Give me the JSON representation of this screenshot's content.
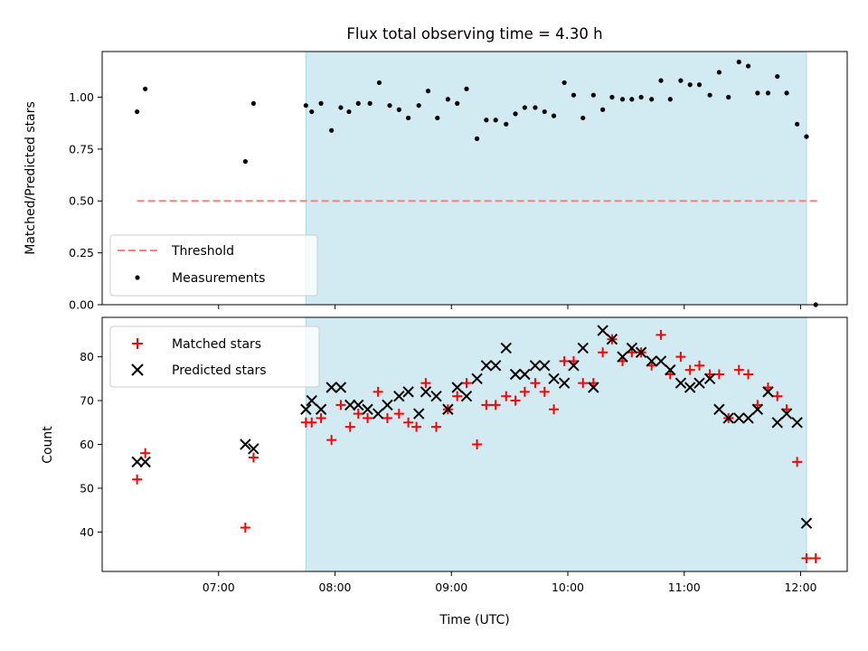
{
  "chart_data": [
    {
      "type": "scatter",
      "title": "Flux total observing time = 4.30 h",
      "xlabel": "",
      "ylabel": "Matched/Predicted stars",
      "x_unit": "hours UTC",
      "xlim": [
        6.0,
        12.4
      ],
      "ylim": [
        0.0,
        1.22
      ],
      "yticks": [
        0.0,
        0.25,
        0.5,
        0.75,
        1.0
      ],
      "ytick_labels": [
        "0.00",
        "0.25",
        "0.50",
        "0.75",
        "1.00"
      ],
      "highlight_span": {
        "x_start": 7.75,
        "x_end": 12.05,
        "color": "#add8e6"
      },
      "legend": {
        "position": "lower-left"
      },
      "series": [
        {
          "name": "Threshold",
          "kind": "dashed-line",
          "color": "#ff7f7f",
          "x": [
            6.3,
            12.15
          ],
          "y": [
            0.5,
            0.5
          ]
        },
        {
          "name": "Measurements",
          "kind": "dot",
          "color": "#000000",
          "x": [
            6.3,
            6.37,
            7.23,
            7.3,
            7.75,
            7.8,
            7.88,
            7.97,
            8.05,
            8.12,
            8.2,
            8.3,
            8.38,
            8.47,
            8.55,
            8.63,
            8.72,
            8.8,
            8.88,
            8.97,
            9.05,
            9.13,
            9.22,
            9.3,
            9.38,
            9.47,
            9.55,
            9.63,
            9.72,
            9.8,
            9.88,
            9.97,
            10.05,
            10.13,
            10.22,
            10.3,
            10.38,
            10.47,
            10.55,
            10.63,
            10.72,
            10.8,
            10.88,
            10.97,
            11.05,
            11.13,
            11.22,
            11.3,
            11.38,
            11.47,
            11.55,
            11.63,
            11.72,
            11.8,
            11.88,
            11.97,
            12.05,
            12.13
          ],
          "y": [
            0.93,
            1.04,
            0.69,
            0.97,
            0.96,
            0.93,
            0.97,
            0.84,
            0.95,
            0.93,
            0.97,
            0.97,
            1.07,
            0.96,
            0.94,
            0.9,
            0.96,
            1.03,
            0.9,
            0.99,
            0.97,
            1.04,
            0.8,
            0.89,
            0.89,
            0.87,
            0.92,
            0.95,
            0.95,
            0.93,
            0.91,
            1.07,
            1.01,
            0.9,
            1.01,
            0.94,
            1.0,
            0.99,
            0.99,
            1.0,
            0.99,
            1.08,
            0.99,
            1.08,
            1.06,
            1.06,
            1.01,
            1.12,
            1.0,
            1.17,
            1.15,
            1.02,
            1.02,
            1.1,
            1.02,
            0.87,
            0.81,
            0.0
          ]
        }
      ]
    },
    {
      "type": "scatter",
      "title": "",
      "xlabel": "Time (UTC)",
      "ylabel": "Count",
      "x_unit": "hours UTC",
      "xlim": [
        6.0,
        12.4
      ],
      "ylim": [
        31,
        89
      ],
      "xticks": [
        7,
        8,
        9,
        10,
        11,
        12
      ],
      "xtick_labels": [
        "07:00",
        "08:00",
        "09:00",
        "10:00",
        "11:00",
        "12:00"
      ],
      "yticks": [
        40,
        50,
        60,
        70,
        80
      ],
      "ytick_labels": [
        "40",
        "50",
        "60",
        "70",
        "80"
      ],
      "highlight_span": {
        "x_start": 7.75,
        "x_end": 12.05,
        "color": "#add8e6"
      },
      "legend": {
        "position": "upper-left"
      },
      "series": [
        {
          "name": "Matched stars",
          "kind": "plus",
          "color": "#ff0000",
          "x": [
            6.3,
            6.37,
            7.23,
            7.3,
            7.75,
            7.8,
            7.88,
            7.97,
            8.05,
            8.13,
            8.2,
            8.28,
            8.37,
            8.45,
            8.55,
            8.63,
            8.7,
            8.78,
            8.87,
            8.97,
            9.05,
            9.13,
            9.22,
            9.3,
            9.38,
            9.47,
            9.55,
            9.63,
            9.72,
            9.8,
            9.88,
            9.97,
            10.05,
            10.13,
            10.22,
            10.3,
            10.38,
            10.47,
            10.55,
            10.63,
            10.72,
            10.8,
            10.88,
            10.97,
            11.05,
            11.13,
            11.22,
            11.3,
            11.38,
            11.47,
            11.55,
            11.63,
            11.72,
            11.8,
            11.88,
            11.97,
            12.05,
            12.13
          ],
          "y": [
            52,
            58,
            41,
            57,
            65,
            65,
            66,
            61,
            69,
            64,
            67,
            66,
            72,
            66,
            67,
            65,
            64,
            74,
            64,
            68,
            71,
            74,
            60,
            69,
            69,
            71,
            70,
            72,
            74,
            72,
            68,
            79,
            79,
            74,
            74,
            81,
            84,
            79,
            81,
            81,
            78,
            85,
            76,
            80,
            77,
            78,
            76,
            76,
            66,
            77,
            76,
            69,
            73,
            71,
            68,
            56,
            34,
            34
          ]
        },
        {
          "name": "Predicted stars",
          "kind": "x",
          "color": "#000000",
          "x": [
            6.3,
            6.37,
            7.23,
            7.3,
            7.75,
            7.8,
            7.88,
            7.97,
            8.05,
            8.13,
            8.2,
            8.28,
            8.37,
            8.45,
            8.55,
            8.63,
            8.72,
            8.78,
            8.87,
            8.97,
            9.05,
            9.13,
            9.22,
            9.3,
            9.38,
            9.47,
            9.55,
            9.63,
            9.72,
            9.8,
            9.88,
            9.97,
            10.05,
            10.13,
            10.22,
            10.3,
            10.38,
            10.47,
            10.55,
            10.63,
            10.72,
            10.8,
            10.88,
            10.97,
            11.05,
            11.13,
            11.22,
            11.3,
            11.38,
            11.47,
            11.55,
            11.63,
            11.72,
            11.8,
            11.88,
            11.97,
            12.05
          ],
          "y": [
            56,
            56,
            60,
            59,
            68,
            70,
            68,
            73,
            73,
            69,
            69,
            68,
            67,
            69,
            71,
            72,
            67,
            72,
            71,
            68,
            73,
            71,
            75,
            78,
            78,
            82,
            76,
            76,
            78,
            78,
            75,
            74,
            78,
            82,
            73,
            86,
            84,
            80,
            82,
            81,
            79,
            79,
            77,
            74,
            73,
            74,
            75,
            68,
            66,
            66,
            66,
            68,
            72,
            65,
            67,
            65,
            42
          ]
        }
      ]
    }
  ]
}
